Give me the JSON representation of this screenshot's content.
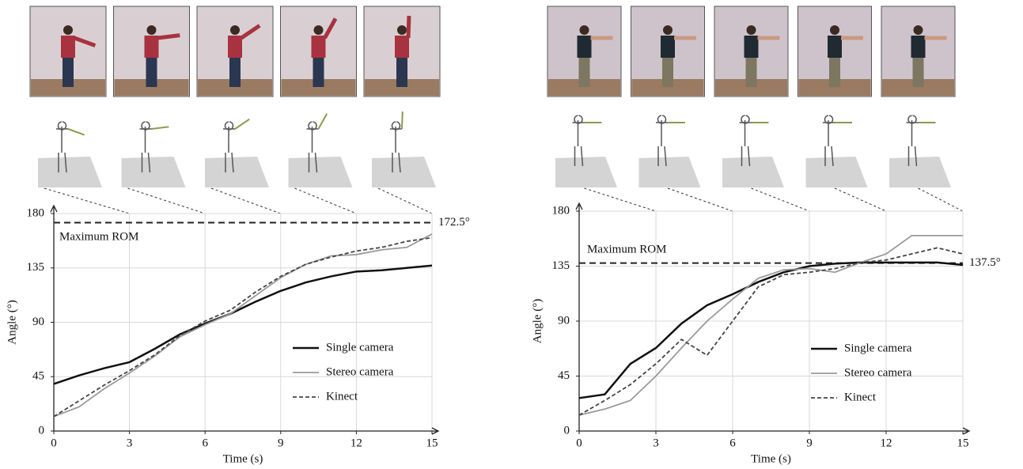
{
  "chart_data": [
    {
      "type": "line",
      "xlabel": "Time (s)",
      "ylabel": "Angle (°)",
      "x": [
        0,
        1,
        2,
        3,
        4,
        5,
        6,
        7,
        8,
        9,
        10,
        11,
        12,
        13,
        14,
        15
      ],
      "xlim": [
        0,
        15
      ],
      "xticks": [
        0,
        3,
        6,
        9,
        12,
        15
      ],
      "ylim": [
        0,
        180
      ],
      "yticks": [
        0,
        45,
        90,
        135,
        180
      ],
      "grid": true,
      "legend": "lower right",
      "reference_line": {
        "value": 172.5,
        "label": "172.5°"
      },
      "annotation": "Maximum ROM",
      "series": [
        {
          "name": "Single camera",
          "color": "#111111",
          "dash": false,
          "values": [
            39,
            46,
            52,
            57,
            68,
            80,
            89,
            97,
            107,
            116,
            123,
            128,
            132,
            133,
            135,
            137
          ]
        },
        {
          "name": "Stereo camera",
          "color": "#9a9a9a",
          "dash": false,
          "values": [
            12,
            20,
            35,
            48,
            62,
            78,
            88,
            97,
            112,
            127,
            138,
            145,
            146,
            150,
            152,
            163
          ]
        },
        {
          "name": "Kinect",
          "color": "#444444",
          "dash": true,
          "values": [
            12,
            25,
            38,
            50,
            63,
            79,
            91,
            100,
            115,
            128,
            138,
            144,
            149,
            152,
            157,
            160
          ]
        }
      ]
    },
    {
      "type": "line",
      "xlabel": "Time (s)",
      "ylabel": "Angle (°)",
      "x": [
        0,
        1,
        2,
        3,
        4,
        5,
        6,
        7,
        8,
        9,
        10,
        11,
        12,
        13,
        14,
        15
      ],
      "xlim": [
        0,
        15
      ],
      "xticks": [
        0,
        3,
        6,
        9,
        12,
        15
      ],
      "ylim": [
        0,
        180
      ],
      "yticks": [
        0,
        45,
        90,
        135,
        180
      ],
      "grid": true,
      "legend": "lower right",
      "reference_line": {
        "value": 137.5,
        "label": "137.5°"
      },
      "annotation": "Maximum ROM",
      "series": [
        {
          "name": "Single camera",
          "color": "#111111",
          "dash": false,
          "values": [
            27,
            30,
            55,
            68,
            88,
            103,
            112,
            122,
            130,
            135,
            137,
            138,
            138,
            138,
            138,
            136
          ]
        },
        {
          "name": "Stereo camera",
          "color": "#9a9a9a",
          "dash": false,
          "values": [
            13,
            18,
            25,
            45,
            68,
            90,
            108,
            125,
            132,
            133,
            130,
            138,
            145,
            160,
            160,
            160
          ]
        },
        {
          "name": "Kinect",
          "color": "#444444",
          "dash": true,
          "values": [
            13,
            25,
            38,
            55,
            75,
            62,
            90,
            118,
            128,
            130,
            133,
            138,
            140,
            145,
            150,
            145
          ]
        }
      ]
    }
  ]
}
